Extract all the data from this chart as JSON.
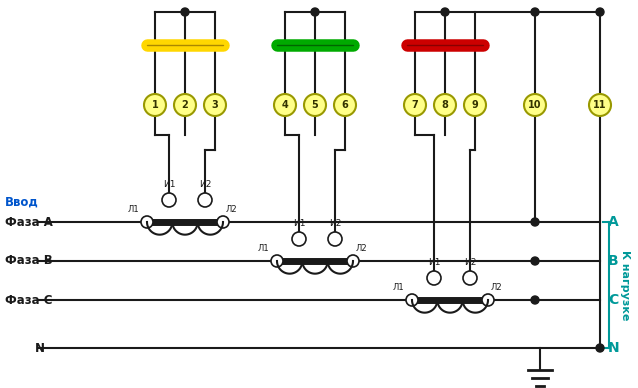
{
  "bg_color": "#ffffff",
  "line_color": "#1a1a1a",
  "colors": {
    "yellow_bar": "#FFD700",
    "green_bar": "#00AA00",
    "red_bar": "#CC0000",
    "terminal_fill": "#FFFF88",
    "terminal_border": "#999900",
    "blue_text": "#0055CC",
    "cyan_text": "#009999",
    "right_vert_text": "#009999"
  },
  "terminal_numbers": [
    "1",
    "2",
    "3",
    "4",
    "5",
    "6",
    "7",
    "8",
    "9",
    "10",
    "11"
  ],
  "left_labels": [
    "Ввод",
    "Фаза А",
    "Фаза В",
    "Фаза С",
    "N"
  ],
  "right_labels": [
    "А",
    "В",
    "С",
    "N"
  ],
  "right_label": "К нагрузке"
}
